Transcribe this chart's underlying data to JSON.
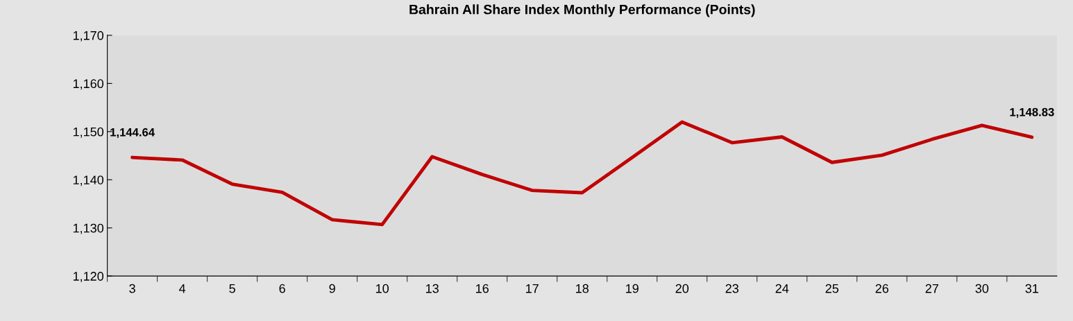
{
  "chart_data": {
    "type": "line",
    "title": "Bahrain All Share Index Monthly Performance (Points)",
    "categories": [
      "3",
      "4",
      "5",
      "6",
      "9",
      "10",
      "13",
      "16",
      "17",
      "18",
      "19",
      "20",
      "23",
      "24",
      "25",
      "26",
      "27",
      "30",
      "31"
    ],
    "series": [
      {
        "color": "#c00000",
        "values": [
          1144.64,
          1144.1,
          1139.1,
          1137.4,
          1131.7,
          1130.7,
          1144.8,
          1141.1,
          1137.8,
          1137.3,
          1144.6,
          1152.0,
          1147.7,
          1148.9,
          1143.6,
          1145.1,
          1148.4,
          1151.3,
          1148.83
        ],
        "value_labels": [
          "1,144.64",
          null,
          null,
          null,
          null,
          null,
          null,
          null,
          null,
          null,
          null,
          null,
          null,
          null,
          null,
          null,
          null,
          null,
          "1,148.83"
        ]
      }
    ],
    "ylim": [
      1120,
      1170
    ],
    "yticks": [
      {
        "value": 1120,
        "label": "1,120"
      },
      {
        "value": 1130,
        "label": "1,130"
      },
      {
        "value": 1140,
        "label": "1,140"
      },
      {
        "value": 1150,
        "label": "1,150"
      },
      {
        "value": 1160,
        "label": "1,160"
      },
      {
        "value": 1170,
        "label": "1,170"
      }
    ],
    "grid": false,
    "legend": false,
    "marker": "none",
    "line_style": "solid"
  }
}
